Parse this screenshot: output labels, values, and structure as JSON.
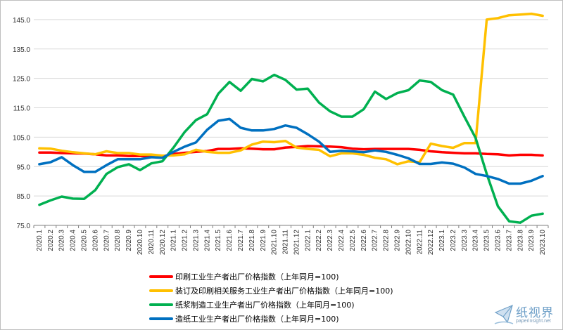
{
  "chart_data": {
    "type": "line",
    "title": "",
    "xlabel": "",
    "ylabel": "",
    "ylim": [
      75.0,
      150.0
    ],
    "yticks": [
      "75.0",
      "85.0",
      "95.0",
      "105.0",
      "115.0",
      "125.0",
      "135.0",
      "145.0"
    ],
    "grid": "horizontal",
    "legend_position": "bottom",
    "categories": [
      "2020.1",
      "2020.2",
      "2020.3",
      "2020.4",
      "2020.5",
      "2020.6",
      "2020.7",
      "2020.8",
      "2020.9",
      "2020.10",
      "2020.11",
      "2020.12",
      "2021.1",
      "2021.2",
      "2021.3",
      "2021.4",
      "2021.5",
      "2021.6",
      "2021.7",
      "2021.8",
      "2021.9",
      "2021.10",
      "2021.11",
      "2021.12",
      "2022.1",
      "2022.2",
      "2022.3",
      "2022.4",
      "2022.5",
      "2022.6",
      "2022.7",
      "2022.8",
      "2022.9",
      "2022.10",
      "2022.11",
      "2022.12",
      "2023.1",
      "2023.2",
      "2023.3",
      "2023.4",
      "2023.5",
      "2023.6",
      "2023.7",
      "2023.8",
      "2023.9",
      "2023.10"
    ],
    "series": [
      {
        "name": "印刷工业生产者出厂价格指数（上年同月=100)",
        "color": "#ff0000",
        "values": [
          99.8,
          99.8,
          99.6,
          99.5,
          99.4,
          99.2,
          98.8,
          98.8,
          98.6,
          98.6,
          98.5,
          98.5,
          99.3,
          99.7,
          100.0,
          100.3,
          101.0,
          101.0,
          101.2,
          101.1,
          100.9,
          100.9,
          101.5,
          101.7,
          102.0,
          101.9,
          101.8,
          101.6,
          101.1,
          100.9,
          101.0,
          101.0,
          101.0,
          101.0,
          100.7,
          100.2,
          99.9,
          99.7,
          99.5,
          99.5,
          99.3,
          99.2,
          98.8,
          99.0,
          99.0,
          98.8
        ]
      },
      {
        "name": "装订及印刷相关服务工业生产者出厂价格指数（上年同月=100)",
        "color": "#ffc000",
        "values": [
          101.2,
          101.1,
          100.4,
          99.9,
          99.5,
          99.2,
          100.2,
          99.6,
          99.6,
          99.1,
          99.1,
          98.7,
          98.8,
          99.2,
          100.7,
          100.0,
          99.7,
          99.7,
          100.5,
          102.5,
          103.5,
          103.3,
          103.7,
          101.5,
          101.0,
          100.7,
          98.5,
          99.5,
          99.5,
          99.0,
          98.0,
          97.5,
          95.8,
          96.8,
          96.5,
          102.8,
          102.0,
          101.4,
          103.0,
          103.0,
          145.0,
          145.5,
          146.5,
          146.7,
          147.0,
          146.3
        ]
      },
      {
        "name": "纸浆制造工业生产者出厂价格指数（上年同月=100)",
        "color": "#00b050",
        "values": [
          82.0,
          83.5,
          84.8,
          84.1,
          84.0,
          87.0,
          92.5,
          94.8,
          95.8,
          93.8,
          96.1,
          96.8,
          101.5,
          106.8,
          110.8,
          112.8,
          119.8,
          123.8,
          120.8,
          124.8,
          124.0,
          126.2,
          124.5,
          121.2,
          121.5,
          116.8,
          113.8,
          112.0,
          112.0,
          114.5,
          120.5,
          118.0,
          120.0,
          121.0,
          124.3,
          123.8,
          121.0,
          119.5,
          112.0,
          104.8,
          92.5,
          81.5,
          76.4,
          75.9,
          78.3,
          79.0
        ]
      },
      {
        "name": "造纸工业生产者出厂价格指数（上年同月=100)",
        "color": "#0070c0",
        "values": [
          95.8,
          96.5,
          98.2,
          95.5,
          93.2,
          93.2,
          95.5,
          97.5,
          97.5,
          97.5,
          98.2,
          98.0,
          100.0,
          101.8,
          103.2,
          107.5,
          110.6,
          111.2,
          108.2,
          107.3,
          107.3,
          107.8,
          109.0,
          108.2,
          106.0,
          103.5,
          100.0,
          100.4,
          100.2,
          99.9,
          100.5,
          100.0,
          99.0,
          97.8,
          95.9,
          95.9,
          96.4,
          96.0,
          94.7,
          92.5,
          91.8,
          90.8,
          89.2,
          89.2,
          90.2,
          91.8
        ]
      }
    ]
  },
  "watermark": {
    "logo_text": "纸视界",
    "url": "paperinsight.net",
    "icon": "paper-boat-logo-icon"
  }
}
